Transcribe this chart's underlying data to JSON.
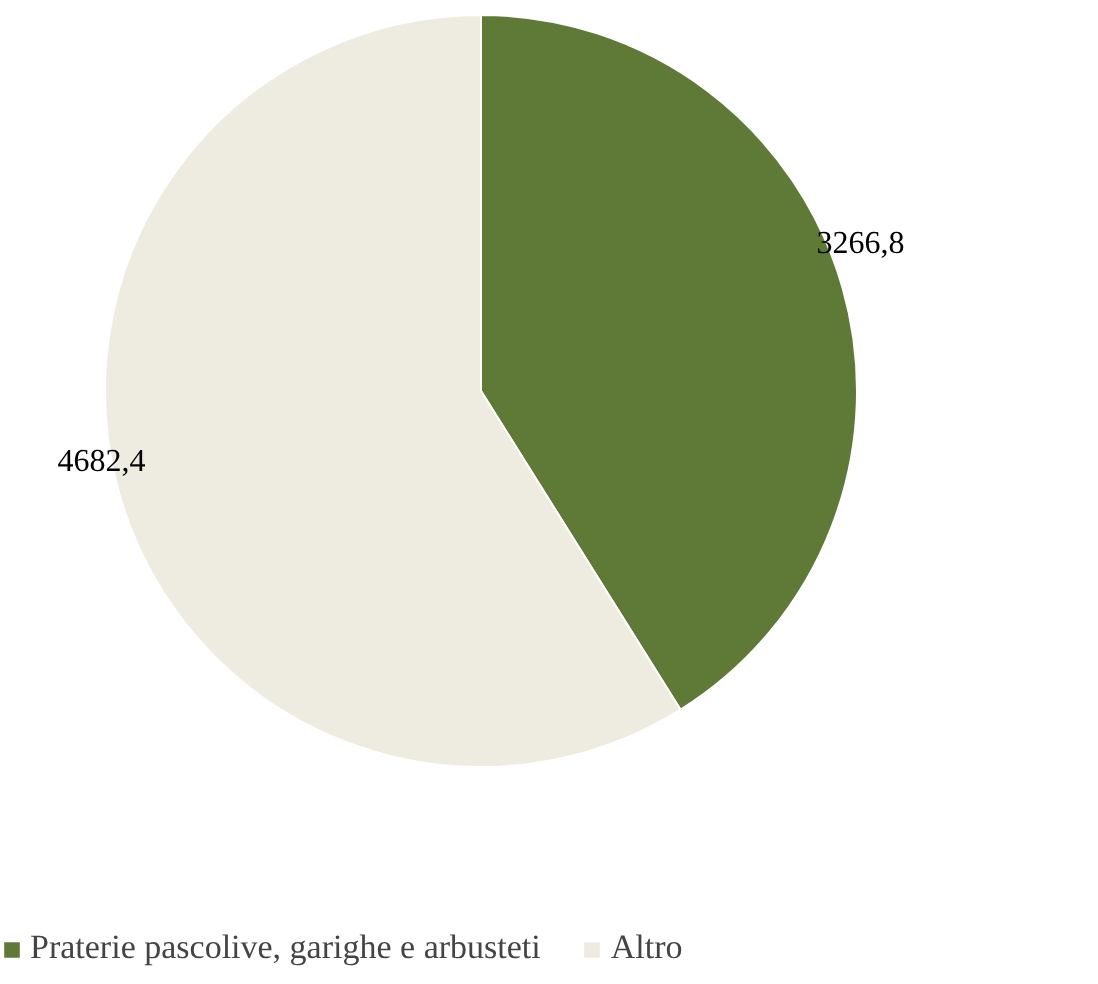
{
  "chart_data": {
    "type": "pie",
    "categories": [
      "Praterie pascolive, garighe e arbusteti",
      "Altro"
    ],
    "values": [
      3266.8,
      4682.4
    ],
    "value_labels": [
      "3266,8",
      "4682,4"
    ],
    "colors": [
      "#5f7a37",
      "#eeece1"
    ],
    "legend": "bottom"
  }
}
